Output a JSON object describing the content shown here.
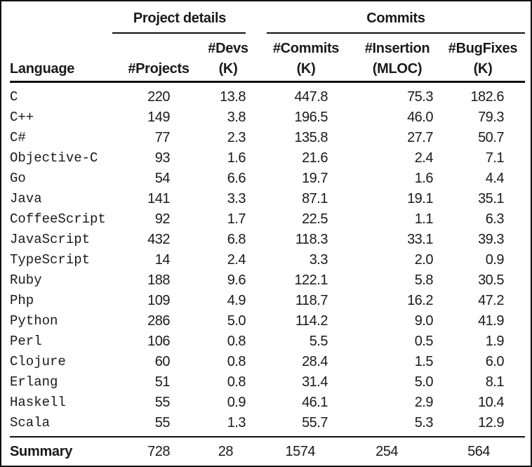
{
  "header": {
    "group_project": "Project details",
    "group_commits": "Commits",
    "col_language": "Language",
    "col_projects": "#Projects",
    "col_devs": [
      "#Devs",
      "(K)"
    ],
    "col_commits": [
      "#Commits",
      "(K)"
    ],
    "col_insertion": [
      "#Insertion",
      "(MLOC)"
    ],
    "col_bugfixes": [
      "#BugFixes",
      "(K)"
    ]
  },
  "rows": [
    {
      "language": "C",
      "projects": "220",
      "devs": "13.8",
      "commits": "447.8",
      "insertion": "75.3",
      "bugfixes": "182.6"
    },
    {
      "language": "C++",
      "projects": "149",
      "devs": "3.8",
      "commits": "196.5",
      "insertion": "46.0",
      "bugfixes": "79.3"
    },
    {
      "language": "C#",
      "projects": "77",
      "devs": "2.3",
      "commits": "135.8",
      "insertion": "27.7",
      "bugfixes": "50.7"
    },
    {
      "language": "Objective-C",
      "projects": "93",
      "devs": "1.6",
      "commits": "21.6",
      "insertion": "2.4",
      "bugfixes": "7.1"
    },
    {
      "language": "Go",
      "projects": "54",
      "devs": "6.6",
      "commits": "19.7",
      "insertion": "1.6",
      "bugfixes": "4.4"
    },
    {
      "language": "Java",
      "projects": "141",
      "devs": "3.3",
      "commits": "87.1",
      "insertion": "19.1",
      "bugfixes": "35.1"
    },
    {
      "language": "CoffeeScript",
      "projects": "92",
      "devs": "1.7",
      "commits": "22.5",
      "insertion": "1.1",
      "bugfixes": "6.3"
    },
    {
      "language": "JavaScript",
      "projects": "432",
      "devs": "6.8",
      "commits": "118.3",
      "insertion": "33.1",
      "bugfixes": "39.3"
    },
    {
      "language": "TypeScript",
      "projects": "14",
      "devs": "2.4",
      "commits": "3.3",
      "insertion": "2.0",
      "bugfixes": "0.9"
    },
    {
      "language": "Ruby",
      "projects": "188",
      "devs": "9.6",
      "commits": "122.1",
      "insertion": "5.8",
      "bugfixes": "30.5"
    },
    {
      "language": "Php",
      "projects": "109",
      "devs": "4.9",
      "commits": "118.7",
      "insertion": "16.2",
      "bugfixes": "47.2"
    },
    {
      "language": "Python",
      "projects": "286",
      "devs": "5.0",
      "commits": "114.2",
      "insertion": "9.0",
      "bugfixes": "41.9"
    },
    {
      "language": "Perl",
      "projects": "106",
      "devs": "0.8",
      "commits": "5.5",
      "insertion": "0.5",
      "bugfixes": "1.9"
    },
    {
      "language": "Clojure",
      "projects": "60",
      "devs": "0.8",
      "commits": "28.4",
      "insertion": "1.5",
      "bugfixes": "6.0"
    },
    {
      "language": "Erlang",
      "projects": "51",
      "devs": "0.8",
      "commits": "31.4",
      "insertion": "5.0",
      "bugfixes": "8.1"
    },
    {
      "language": "Haskell",
      "projects": "55",
      "devs": "0.9",
      "commits": "46.1",
      "insertion": "2.9",
      "bugfixes": "10.4"
    },
    {
      "language": "Scala",
      "projects": "55",
      "devs": "1.3",
      "commits": "55.7",
      "insertion": "5.3",
      "bugfixes": "12.9"
    }
  ],
  "summary": {
    "label": "Summary",
    "projects": "728",
    "devs": "28",
    "commits": "1574",
    "insertion": "254",
    "bugfixes": "564"
  }
}
